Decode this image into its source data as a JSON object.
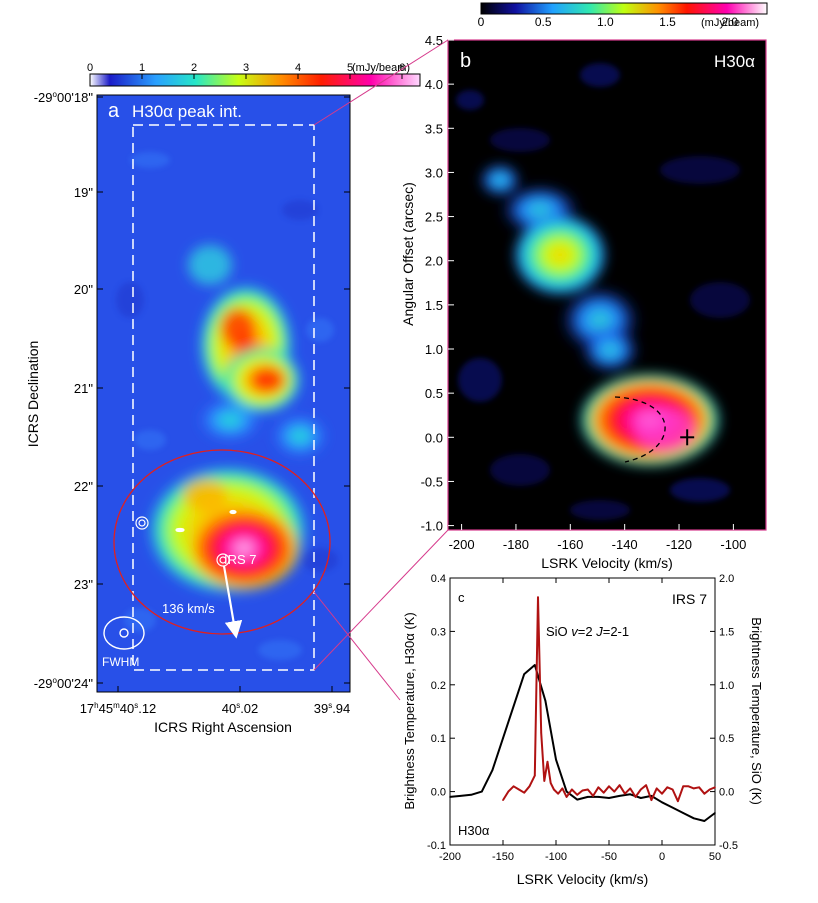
{
  "chart_data": [
    {
      "id": "panel_a",
      "type": "heatmap",
      "panel_letter": "a",
      "title": "H30α peak int.",
      "colorbar": {
        "ticks": [
          "0",
          "1",
          "2",
          "3",
          "4",
          "5",
          "6"
        ],
        "unit": "(mJy/beam)",
        "range": [
          0,
          6
        ],
        "colors": [
          "#ffffff",
          "#1c1cc8",
          "#2aa0ff",
          "#26e6c8",
          "#c8ff14",
          "#ff8c00",
          "#ff1e00",
          "#ff00aa",
          "#ffd8ff"
        ]
      },
      "xlabel": "ICRS Right Ascension",
      "ylabel": "ICRS Declination",
      "x_ticks": [
        {
          "main": "17",
          "sup1": "h",
          "mid": "45",
          "sup2": "m",
          "mid2": "40",
          "sup3": "s",
          "rest": ".12"
        },
        {
          "main": "40",
          "sup3": "s",
          "rest": ".02"
        },
        {
          "main": "39",
          "sup3": "s",
          "rest": ".94"
        }
      ],
      "y_ticks": [
        {
          "lead": "-29",
          "sup": "o",
          "rest": "00'18\""
        },
        {
          "rest": "19\""
        },
        {
          "rest": "20\""
        },
        {
          "rest": "21\""
        },
        {
          "rest": "22\""
        },
        {
          "rest": "23\""
        },
        {
          "lead": "-29",
          "sup": "o",
          "rest": "00'24\""
        }
      ],
      "annotations": {
        "source_label": "IRS 7",
        "velocity_label": "136 km/s",
        "beam_label": "FWHM"
      }
    },
    {
      "id": "panel_b",
      "type": "heatmap",
      "panel_letter": "b",
      "title": "H30α",
      "colorbar": {
        "ticks": [
          "0",
          "0.5",
          "1.0",
          "1.5",
          "2.0"
        ],
        "unit": "(mJy/beam)",
        "range": [
          0,
          2.3
        ]
      },
      "xlabel": "LSRK Velocity  (km/s)",
      "ylabel": "Angular Offset (arcsec)",
      "x_ticks": [
        -200,
        -180,
        -160,
        -140,
        -120,
        -100
      ],
      "x_tick_labels": [
        "-200",
        "-180",
        "-160",
        "-140",
        "-120",
        "-100"
      ],
      "xlim": [
        -205,
        -88
      ],
      "y_ticks": [
        -1.0,
        -0.5,
        0.0,
        0.5,
        1.0,
        1.5,
        2.0,
        2.5,
        3.0,
        3.5,
        4.0,
        4.5
      ],
      "y_tick_labels": [
        "-1.0",
        "-0.5",
        "0.0",
        "0.5",
        "1.0",
        "1.5",
        "2.0",
        "2.5",
        "3.0",
        "3.5",
        "4.0",
        "4.5"
      ],
      "ylim": [
        -1.05,
        4.5
      ],
      "marker": {
        "x": -117,
        "y": 0.0
      }
    },
    {
      "id": "panel_c",
      "type": "line",
      "panel_letter": "c",
      "title": "IRS 7",
      "xlabel": "LSRK Velocity (km/s)",
      "ylabel_left": "Brightness Temperature, H30α (K)",
      "ylabel_right": "Brightness Temperature, SiO (K)",
      "xlim": [
        -200,
        50
      ],
      "ylim_left": [
        -0.1,
        0.4
      ],
      "ylim_right": [
        -0.5,
        2.0
      ],
      "x_ticks": [
        "-200",
        "-150",
        "-100",
        "-50",
        "0",
        "50"
      ],
      "y_ticks_left": [
        "-0.1",
        "0.0",
        "0.1",
        "0.2",
        "0.3",
        "0.4"
      ],
      "y_ticks_right": [
        "-0.5",
        "0.0",
        "0.5",
        "1.0",
        "1.5",
        "2.0"
      ],
      "series": [
        {
          "name": "H30α",
          "axis": "left",
          "color": "#000000",
          "x": [
            -200,
            -190,
            -180,
            -170,
            -160,
            -150,
            -140,
            -130,
            -120,
            -110,
            -100,
            -90,
            -80,
            -70,
            -60,
            -50,
            -40,
            -30,
            -20,
            -10,
            0,
            10,
            20,
            30,
            40,
            50
          ],
          "y": [
            -0.01,
            -0.008,
            -0.006,
            0.0,
            0.04,
            0.1,
            0.16,
            0.22,
            0.237,
            0.17,
            0.06,
            0.0,
            -0.015,
            -0.01,
            -0.01,
            -0.012,
            -0.008,
            -0.005,
            -0.012,
            -0.008,
            -0.02,
            -0.03,
            -0.04,
            -0.05,
            -0.055,
            -0.04
          ]
        },
        {
          "name": "SiO v=2 J=2-1",
          "axis": "right",
          "color": "#b01212",
          "x": [
            -150,
            -145,
            -140,
            -135,
            -130,
            -125,
            -120,
            -117,
            -114,
            -111,
            -108,
            -105,
            -102,
            -98,
            -94,
            -90,
            -85,
            -80,
            -75,
            -70,
            -65,
            -60,
            -55,
            -50,
            -45,
            -40,
            -35,
            -30,
            -25,
            -20,
            -15,
            -10,
            -5,
            0,
            5,
            10,
            15,
            20,
            25,
            30,
            35,
            40,
            45,
            50
          ],
          "y": [
            -0.08,
            0.0,
            0.05,
            0.02,
            -0.01,
            0.05,
            0.15,
            1.82,
            0.55,
            0.1,
            0.28,
            0.08,
            0.02,
            -0.02,
            0.03,
            -0.05,
            0.02,
            -0.03,
            0.01,
            0.02,
            -0.04,
            0.04,
            -0.01,
            0.05,
            0.0,
            0.06,
            -0.02,
            0.03,
            -0.05,
            0.02,
            0.06,
            -0.08,
            0.03,
            -0.02,
            0.04,
            0.02,
            -0.09,
            0.05,
            0.05,
            0.03,
            0.04,
            -0.02,
            0.02,
            0.04
          ]
        }
      ],
      "legend": {
        "sio_label": {
          "pre": "SiO ",
          "v": "v",
          "mid": "=2 ",
          "J": "J",
          "post": "=2-1"
        },
        "h30_label": "H30α"
      }
    }
  ]
}
